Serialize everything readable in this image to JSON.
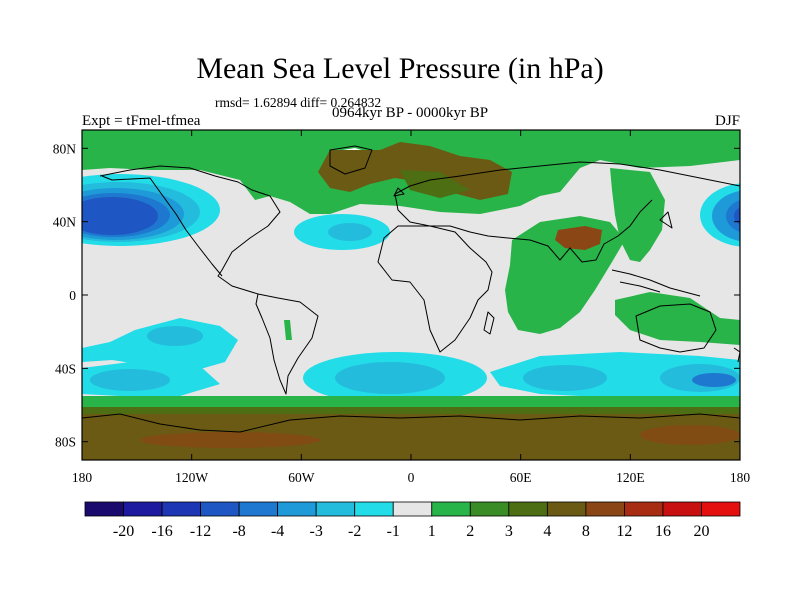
{
  "title": "Mean Sea Level Pressure (in hPa)",
  "stats": "rmsd= 1.62894 diff= 0.264832",
  "experiment": "Expt = tFmel-tfmea",
  "period": "0964kyr BP - 0000kyr BP",
  "season": "DJF",
  "map": {
    "lon_ticks": [
      "180",
      "120W",
      "60W",
      "0",
      "60E",
      "120E",
      "180"
    ],
    "lat_ticks": [
      "80N",
      "40N",
      "0",
      "40S",
      "80S"
    ],
    "lon_values": [
      -180,
      -120,
      -60,
      0,
      60,
      120,
      180
    ],
    "lat_values": [
      80,
      40,
      0,
      -40,
      -80
    ]
  },
  "colorbar": {
    "labels": [
      "-20",
      "-16",
      "-12",
      "-8",
      "-4",
      "-3",
      "-2",
      "-1",
      "1",
      "2",
      "3",
      "4",
      "8",
      "12",
      "16",
      "20"
    ],
    "colors": [
      "#1a0a6e",
      "#1e1aa0",
      "#1c36b4",
      "#1e56c4",
      "#1e78d0",
      "#1e9ad8",
      "#24bcdc",
      "#22dce8",
      "#e6e6e6",
      "#28b448",
      "#3a8c26",
      "#4e6e14",
      "#6b5a14",
      "#8a4614",
      "#a82c12",
      "#c81010",
      "#e41010"
    ]
  },
  "colors": {
    "background": "#e6e6e6",
    "green": "#28b448",
    "olive": "#4e6e14",
    "brown": "#6b5a14",
    "rust": "#8a4614",
    "cyan": "#22dce8",
    "cyan2": "#24bcdc",
    "blue1": "#1e9ad8",
    "blue2": "#1e78d0",
    "blue3": "#1e56c4"
  }
}
